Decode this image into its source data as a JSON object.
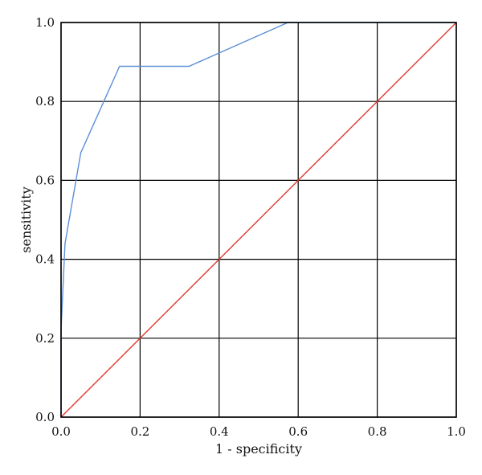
{
  "chart_data": {
    "type": "line",
    "xlabel": "1 - specificity",
    "ylabel": "sensitivity",
    "xlim": [
      0.0,
      1.0
    ],
    "ylim": [
      0.0,
      1.0
    ],
    "grid": true,
    "x_ticks": [
      "0.0",
      "0.2",
      "0.4",
      "0.6",
      "0.8",
      "1.0"
    ],
    "y_ticks": [
      "0.0",
      "0.2",
      "0.4",
      "0.6",
      "0.8",
      "1.0"
    ],
    "series": [
      {
        "color": "#5b8fd6",
        "points": [
          [
            0.0,
            0.0
          ],
          [
            0.0,
            0.22
          ],
          [
            0.01,
            0.44
          ],
          [
            0.05,
            0.67
          ],
          [
            0.148,
            0.889
          ],
          [
            0.324,
            0.889
          ],
          [
            0.574,
            1.0
          ],
          [
            1.0,
            1.0
          ]
        ]
      },
      {
        "color": "#e03a2f",
        "points": [
          [
            0.0,
            0.0
          ],
          [
            1.0,
            1.0
          ]
        ]
      }
    ]
  }
}
